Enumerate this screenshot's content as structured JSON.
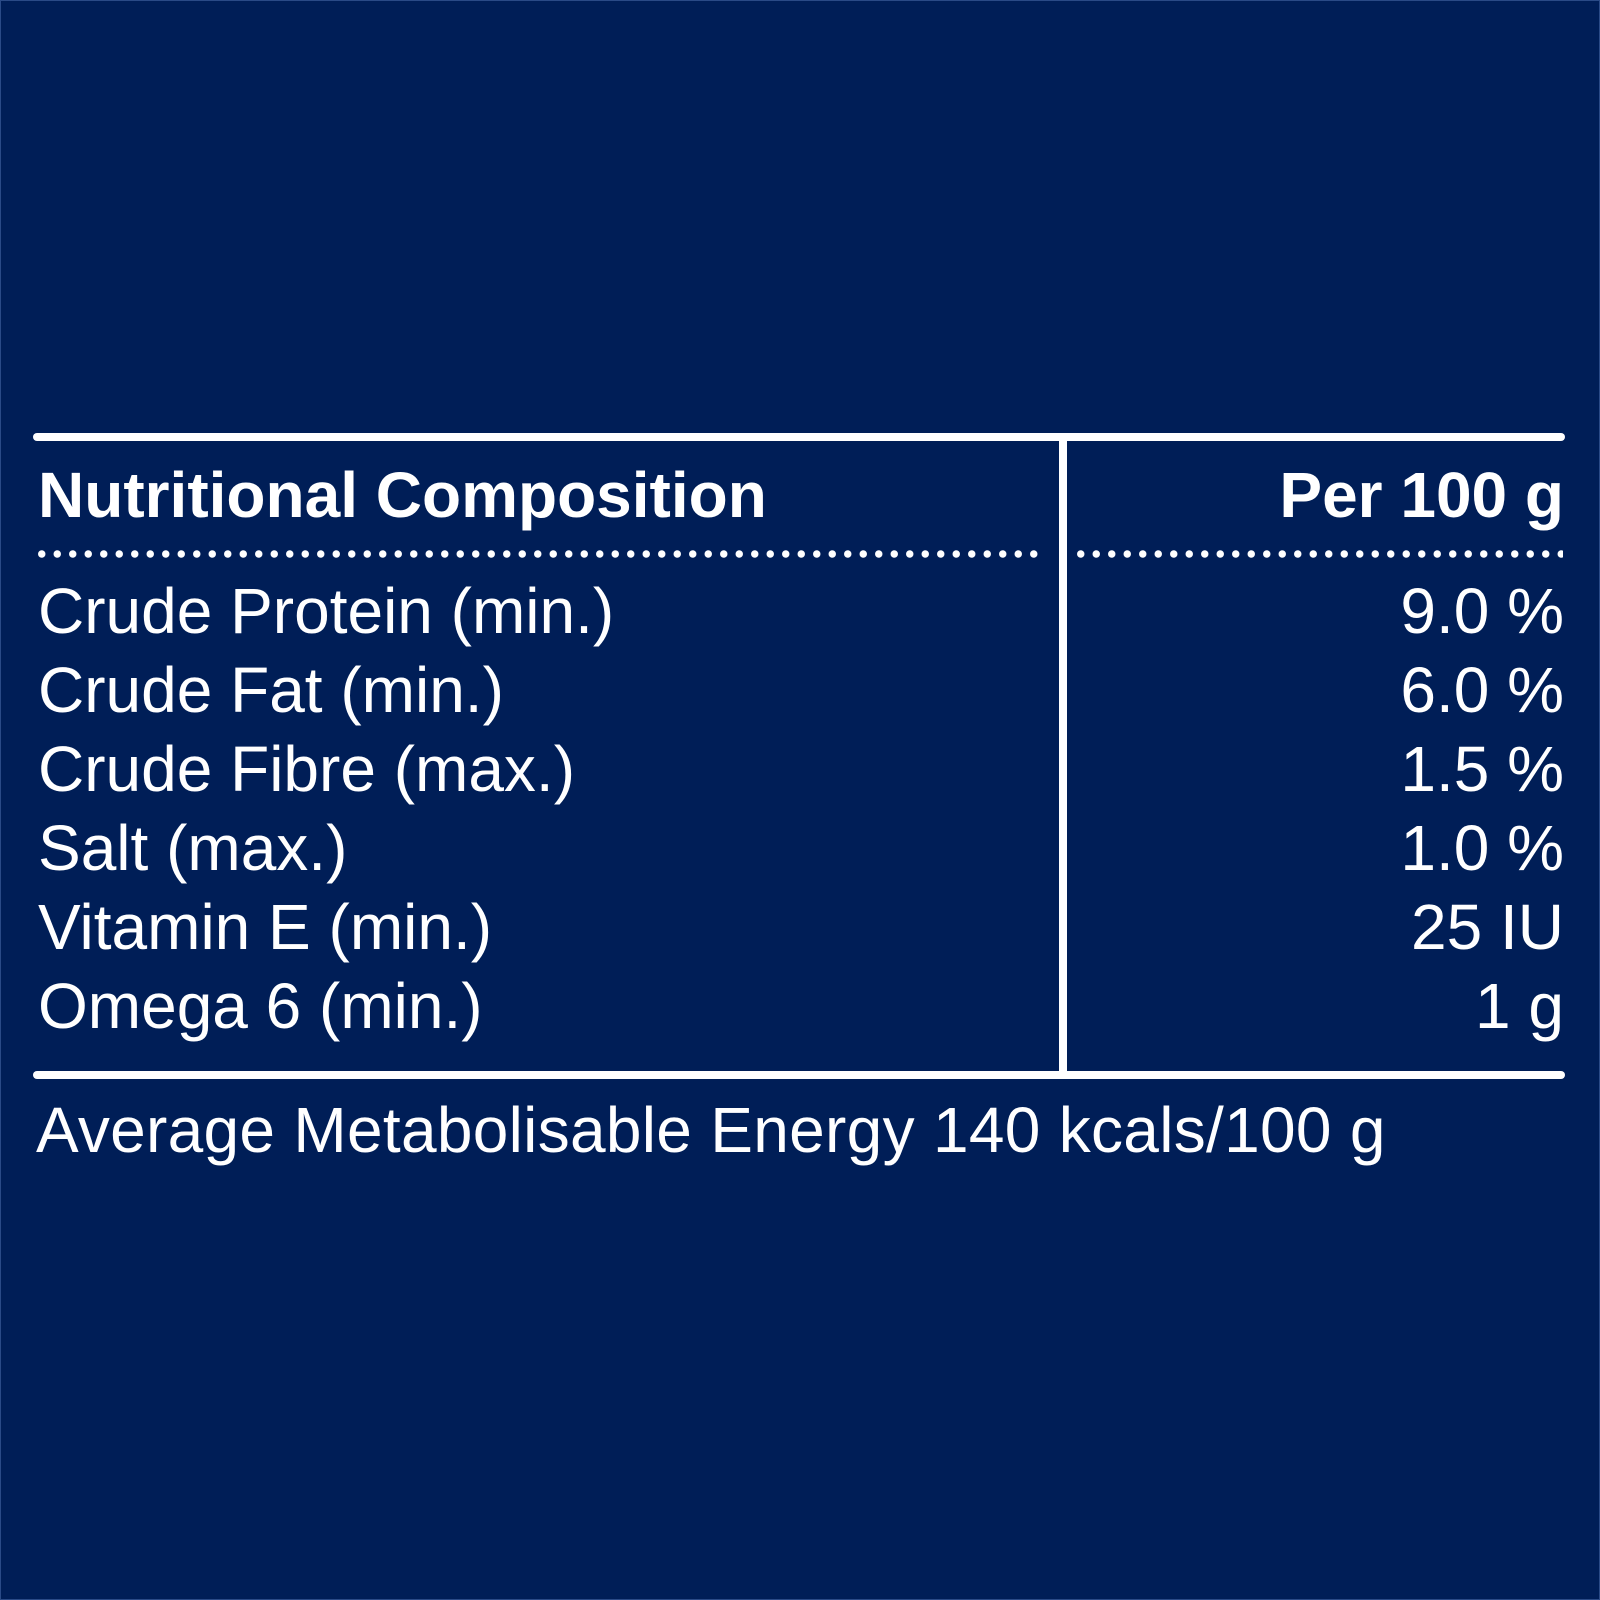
{
  "table": {
    "header": {
      "label": "Nutritional Composition",
      "unit": "Per 100 g"
    },
    "rows": [
      {
        "label": "Crude Protein (min.)",
        "value": "9.0 %"
      },
      {
        "label": "Crude Fat (min.)",
        "value": "6.0 %"
      },
      {
        "label": "Crude Fibre (max.)",
        "value": "1.5 %"
      },
      {
        "label": "Salt (max.)",
        "value": "1.0 %"
      },
      {
        "label": "Vitamin E (min.)",
        "value": "25 IU"
      },
      {
        "label": "Omega 6 (min.)",
        "value": "1 g"
      }
    ]
  },
  "footer": {
    "energy_note": "Average Metabolisable Energy 140 kcals/100 g"
  },
  "colors": {
    "background": "#001e57",
    "text": "#ffffff"
  }
}
